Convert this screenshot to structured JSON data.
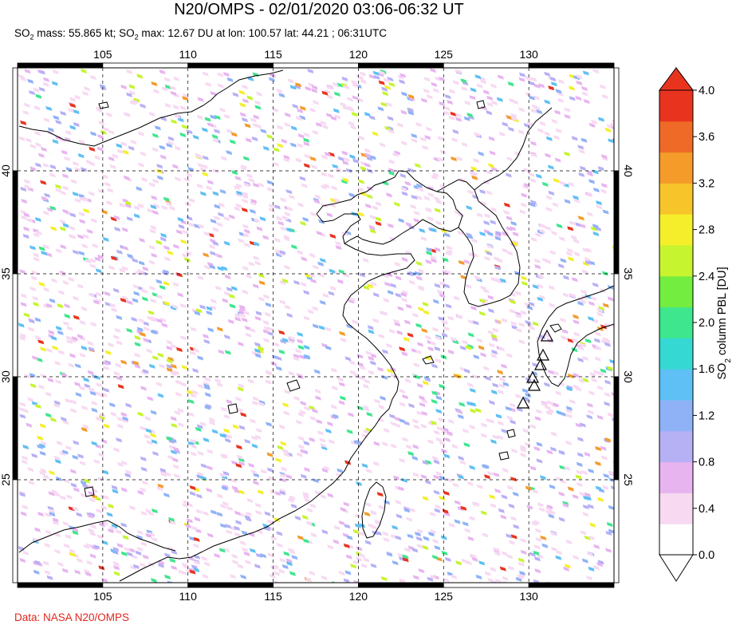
{
  "title": "N20/OMPS - 02/01/2020 03:06-06:32 UT",
  "subtitle": {
    "p1": "SO",
    "p1_sub": "2",
    "p2": " mass: 55.865 kt; SO",
    "p2_sub": "2",
    "p3": " max: 12.67 DU at lon: 100.57 lat: 44.21 ; 06:31UTC"
  },
  "credit": "Data: NASA N20/OMPS",
  "map": {
    "lon_range": [
      100,
      135
    ],
    "lat_range": [
      20,
      45
    ],
    "lon_ticks": [
      "105",
      "110",
      "115",
      "120",
      "125",
      "130"
    ],
    "lat_ticks": [
      "40",
      "35",
      "30",
      "25"
    ],
    "volcano_markers": 6
  },
  "colorbar": {
    "title": "SO2 column PBL [DU]",
    "title_main": "SO",
    "title_sub": "2",
    "title_rest": " column PBL [DU]",
    "tick_labels": [
      "4.0",
      "3.6",
      "3.2",
      "2.8",
      "2.4",
      "2.0",
      "1.6",
      "1.2",
      "0.8",
      "0.4",
      "0.0"
    ],
    "colors": [
      "#ffffff",
      "#f7d9f2",
      "#e7b4f0",
      "#b6b0f5",
      "#8fb2f7",
      "#5ec0f4",
      "#35d8d3",
      "#3ee68e",
      "#73ed3f",
      "#c6f42e",
      "#f4ef2a",
      "#f7c52a",
      "#f59b2a",
      "#f06a27",
      "#e8341f"
    ],
    "over_color": "#e8341f",
    "under_color": "#ffffff"
  }
}
